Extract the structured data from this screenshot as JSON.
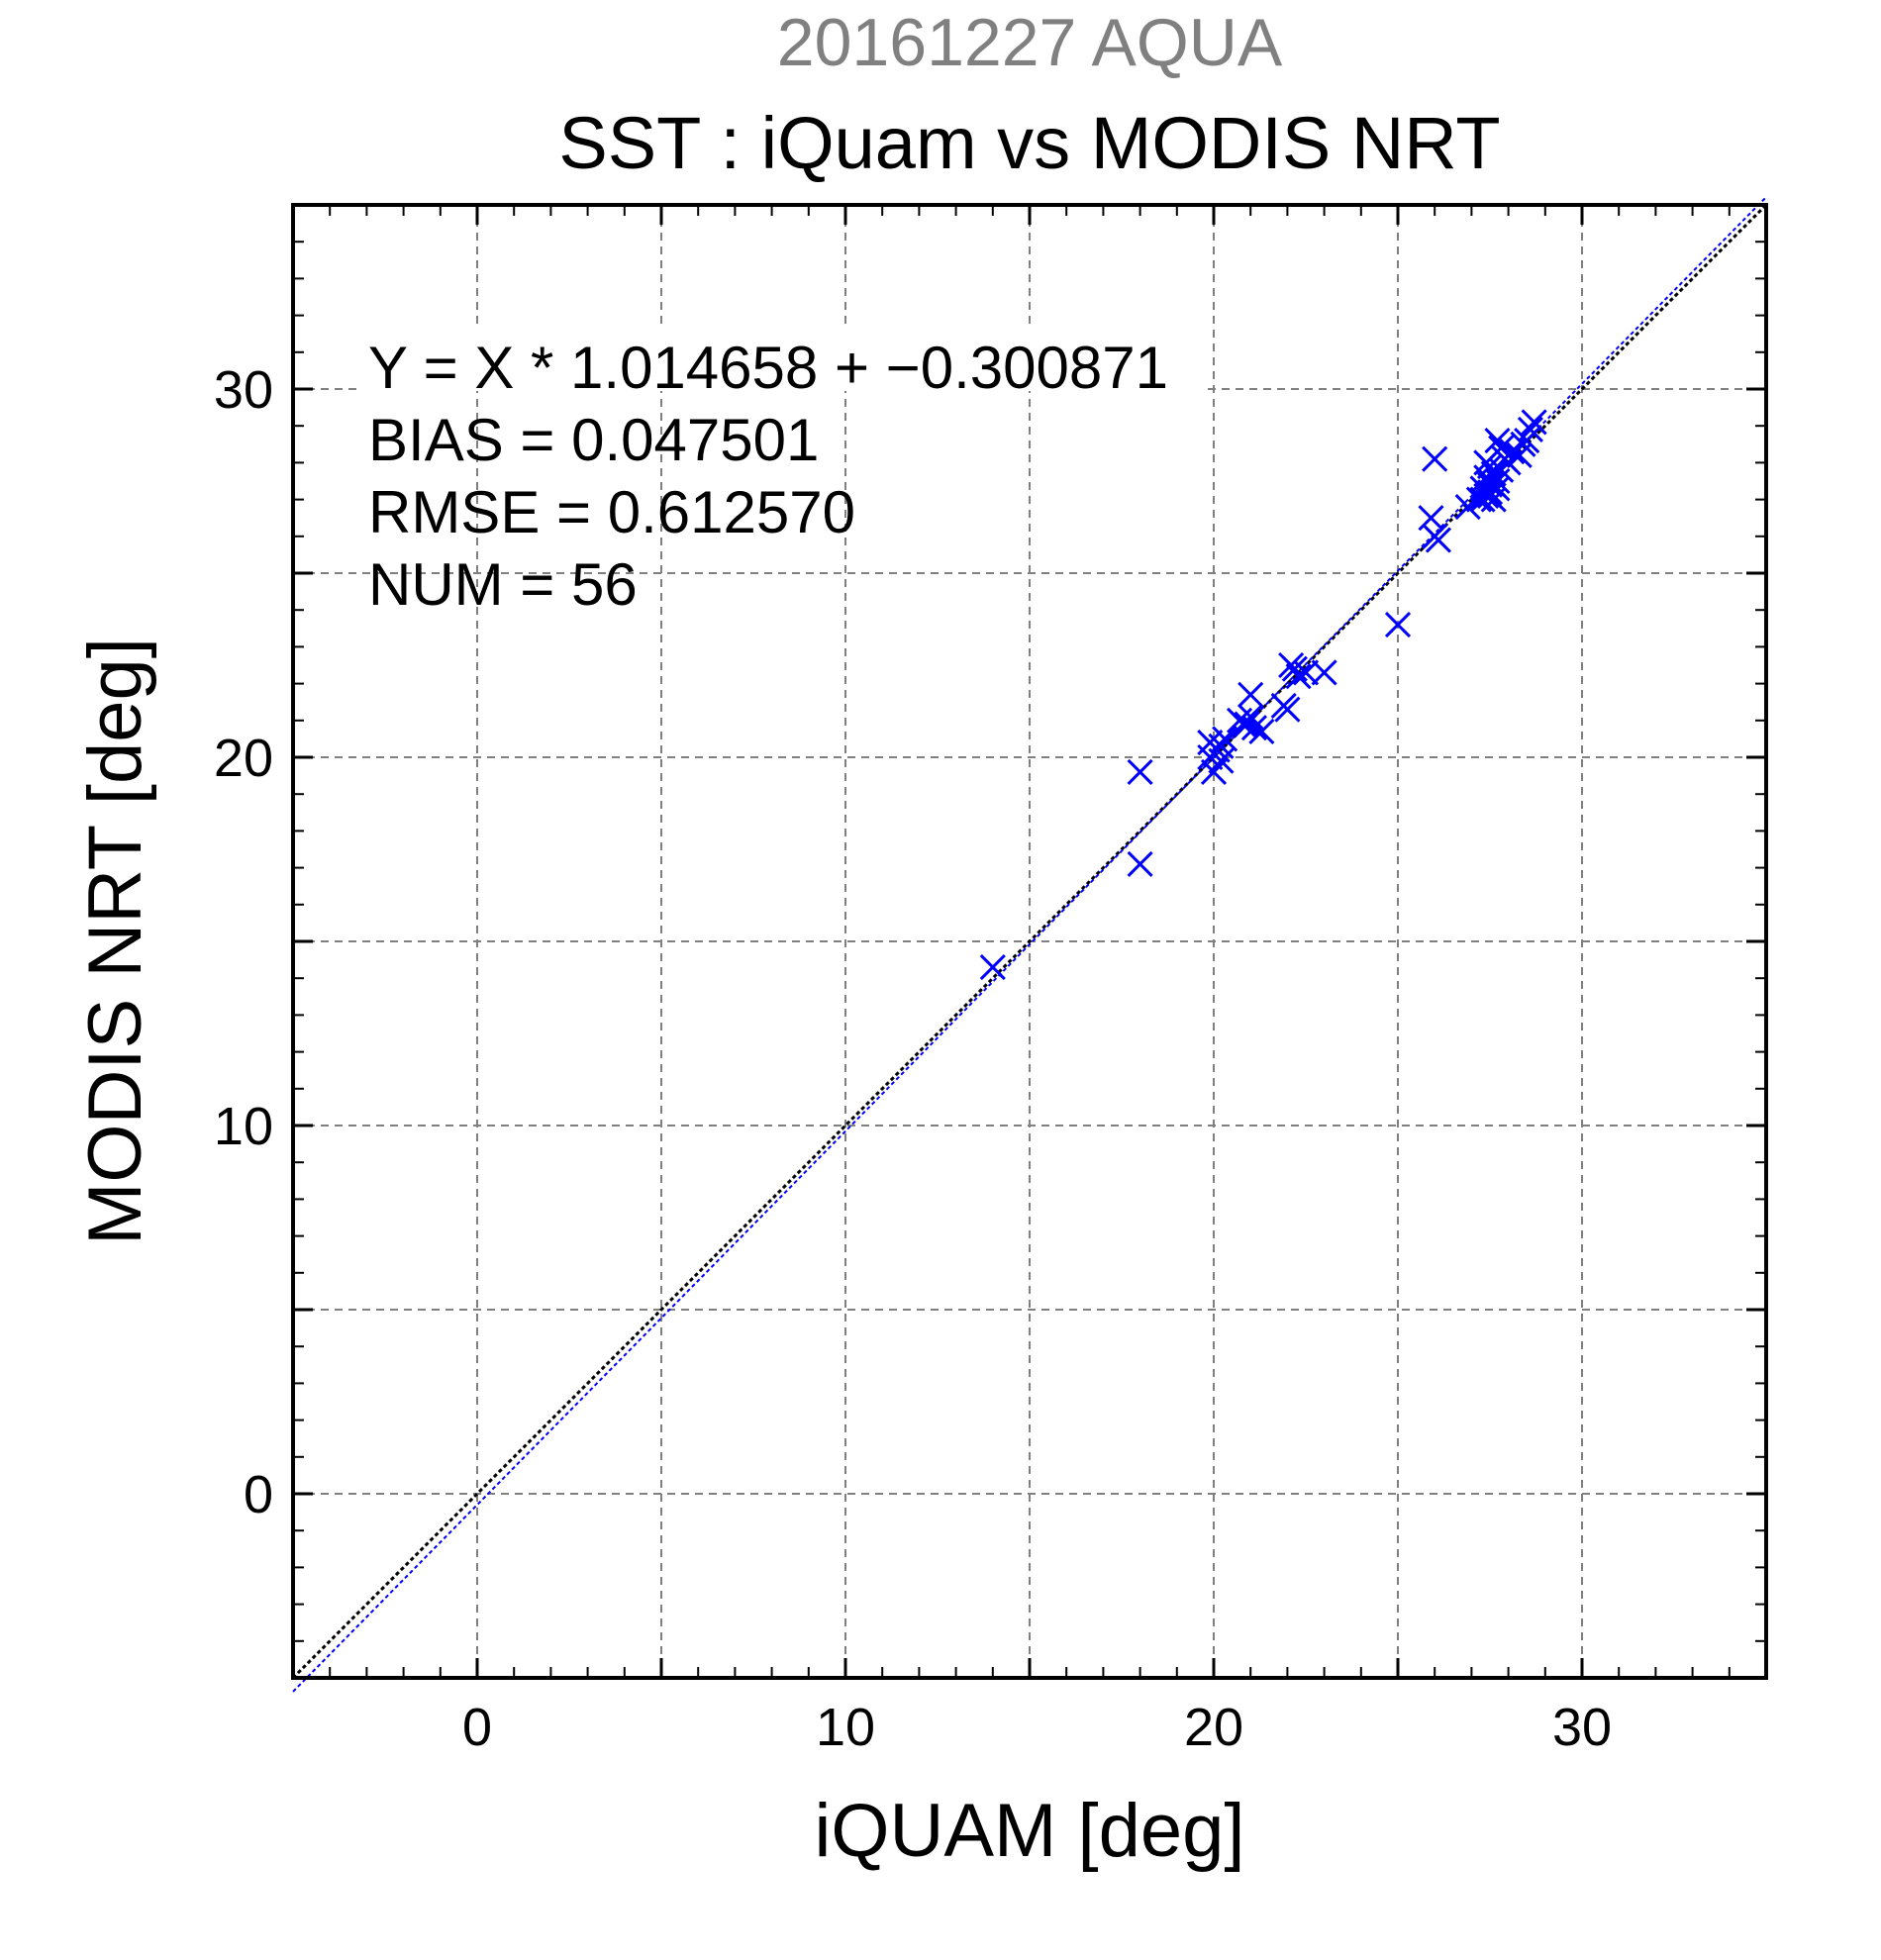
{
  "chart_data": {
    "type": "scatter",
    "supertitle": "20161227 AQUA",
    "title": "SST : iQuam vs MODIS NRT",
    "xlabel": "iQUAM [deg]",
    "ylabel": "MODIS NRT [deg]",
    "xlim": [
      -5,
      35
    ],
    "ylim": [
      -5,
      35
    ],
    "xticks": [
      0,
      10,
      20,
      30
    ],
    "yticks": [
      0,
      10,
      20,
      30
    ],
    "grid": true,
    "grid_step": 5,
    "minor_tick_step": 1,
    "marker": "x",
    "colors": {
      "points": "#0000ff",
      "identity_line": "#000000",
      "fit_line": "#0000ff",
      "supertitle": "#808080"
    },
    "annotations": [
      "Y = X * 1.014658 + −0.300871",
      "BIAS = 0.047501",
      "RMSE = 0.612570",
      "NUM = 56"
    ],
    "fit": {
      "slope": 1.014658,
      "intercept": -0.300871
    },
    "identity_line": {
      "slope": 1,
      "intercept": 0
    },
    "points": [
      [
        14.0,
        14.3
      ],
      [
        18.0,
        19.6
      ],
      [
        18.0,
        17.1
      ],
      [
        19.9,
        20.4
      ],
      [
        19.9,
        20.0
      ],
      [
        20.0,
        19.6
      ],
      [
        20.1,
        20.2
      ],
      [
        20.2,
        19.9
      ],
      [
        20.2,
        20.3
      ],
      [
        20.3,
        20.5
      ],
      [
        20.7,
        21.0
      ],
      [
        20.8,
        20.9
      ],
      [
        20.9,
        20.9
      ],
      [
        21.0,
        21.1
      ],
      [
        21.0,
        21.7
      ],
      [
        21.1,
        20.8
      ],
      [
        21.3,
        20.7
      ],
      [
        21.9,
        21.4
      ],
      [
        22.0,
        21.3
      ],
      [
        22.1,
        22.5
      ],
      [
        22.2,
        22.4
      ],
      [
        22.3,
        22.2
      ],
      [
        22.5,
        22.3
      ],
      [
        23.0,
        22.3
      ],
      [
        25.0,
        23.6
      ],
      [
        25.9,
        26.5
      ],
      [
        26.0,
        28.1
      ],
      [
        26.1,
        25.9
      ],
      [
        26.0,
        26.0
      ],
      [
        26.9,
        26.8
      ],
      [
        27.2,
        27.0
      ],
      [
        27.3,
        27.3
      ],
      [
        27.4,
        27.1
      ],
      [
        27.4,
        27.6
      ],
      [
        27.5,
        27.1
      ],
      [
        27.5,
        27.2
      ],
      [
        27.5,
        27.9
      ],
      [
        27.6,
        27.0
      ],
      [
        27.6,
        27.4
      ],
      [
        27.7,
        27.5
      ],
      [
        27.7,
        28.6
      ],
      [
        27.8,
        27.8
      ],
      [
        27.9,
        28.1
      ],
      [
        27.4,
        28.0
      ],
      [
        27.6,
        27.7
      ],
      [
        27.8,
        28.4
      ],
      [
        28.0,
        28.0
      ],
      [
        28.1,
        28.3
      ],
      [
        28.3,
        28.2
      ],
      [
        28.4,
        28.5
      ],
      [
        28.5,
        28.6
      ],
      [
        28.6,
        28.9
      ],
      [
        28.7,
        29.1
      ],
      [
        27.3,
        27.0
      ],
      [
        27.5,
        27.4
      ],
      [
        27.7,
        27.3
      ]
    ]
  }
}
